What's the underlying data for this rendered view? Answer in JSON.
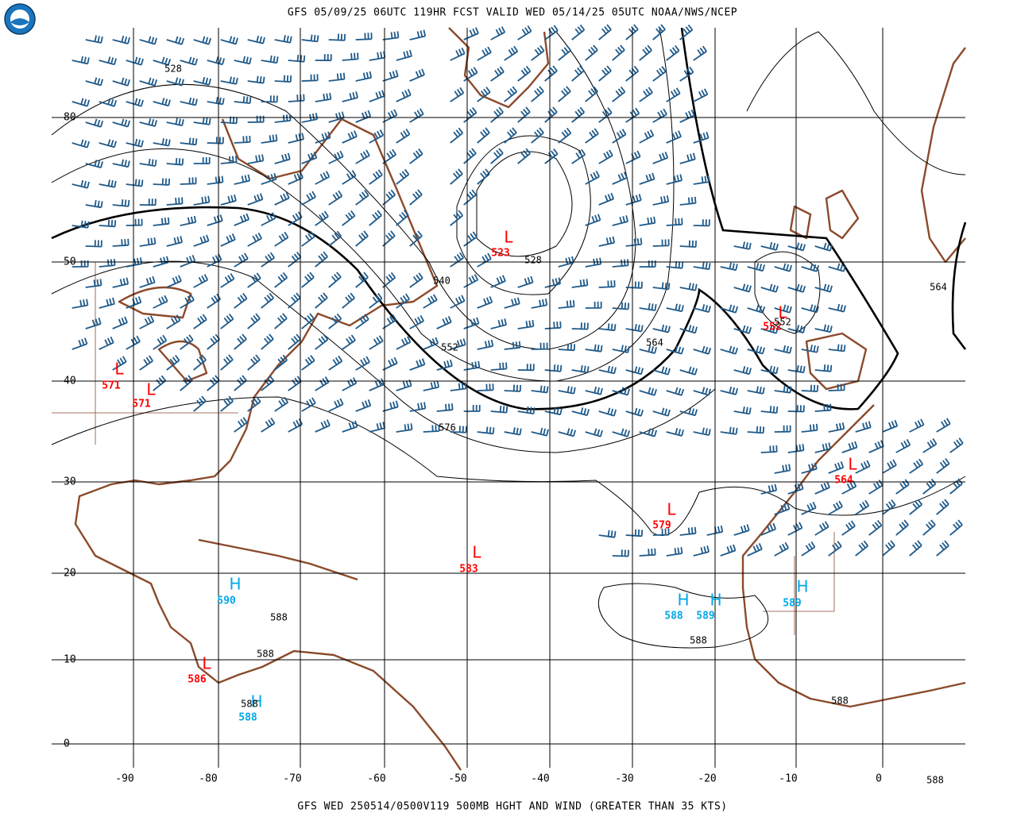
{
  "header": {
    "title": "GFS 05/09/25 06UTC 119HR FCST VALID WED 05/14/25 05UTC NOAA/NWS/NCEP"
  },
  "footer": {
    "caption": "GFS WED 250514/0500V119 500MB HGHT AND WIND (GREATER THAN 35 KTS)"
  },
  "latitude_labels": [
    80,
    50,
    40,
    30,
    20,
    10,
    0
  ],
  "longitude_labels": [
    -90,
    -80,
    -70,
    -60,
    -50,
    -40,
    -30,
    -20,
    -10,
    0
  ],
  "centers": [
    {
      "symbol": "L",
      "value": 523,
      "color": "#ff0000"
    },
    {
      "symbol": "L",
      "value": 552,
      "color": "#ff0000"
    },
    {
      "symbol": "L",
      "value": 571,
      "color": "#ff0000"
    },
    {
      "symbol": "L",
      "value": 571,
      "color": "#ff0000"
    },
    {
      "symbol": "L",
      "value": 564,
      "color": "#ff0000"
    },
    {
      "symbol": "L",
      "value": 579,
      "color": "#ff0000"
    },
    {
      "symbol": "L",
      "value": 583,
      "color": "#ff0000"
    },
    {
      "symbol": "L",
      "value": 586,
      "color": "#ff0000"
    },
    {
      "symbol": "H",
      "value": 590,
      "color": "#00a8e8"
    },
    {
      "symbol": "H",
      "value": 588,
      "color": "#00a8e8"
    },
    {
      "symbol": "H",
      "value": 589,
      "color": "#00a8e8"
    },
    {
      "symbol": "H",
      "value": 589,
      "color": "#00a8e8"
    },
    {
      "symbol": "H",
      "value": 588,
      "color": "#00a8e8"
    }
  ],
  "contour_labels": [
    528,
    528,
    540,
    552,
    552,
    564,
    564,
    576,
    588,
    588,
    588,
    588,
    588,
    588
  ]
}
